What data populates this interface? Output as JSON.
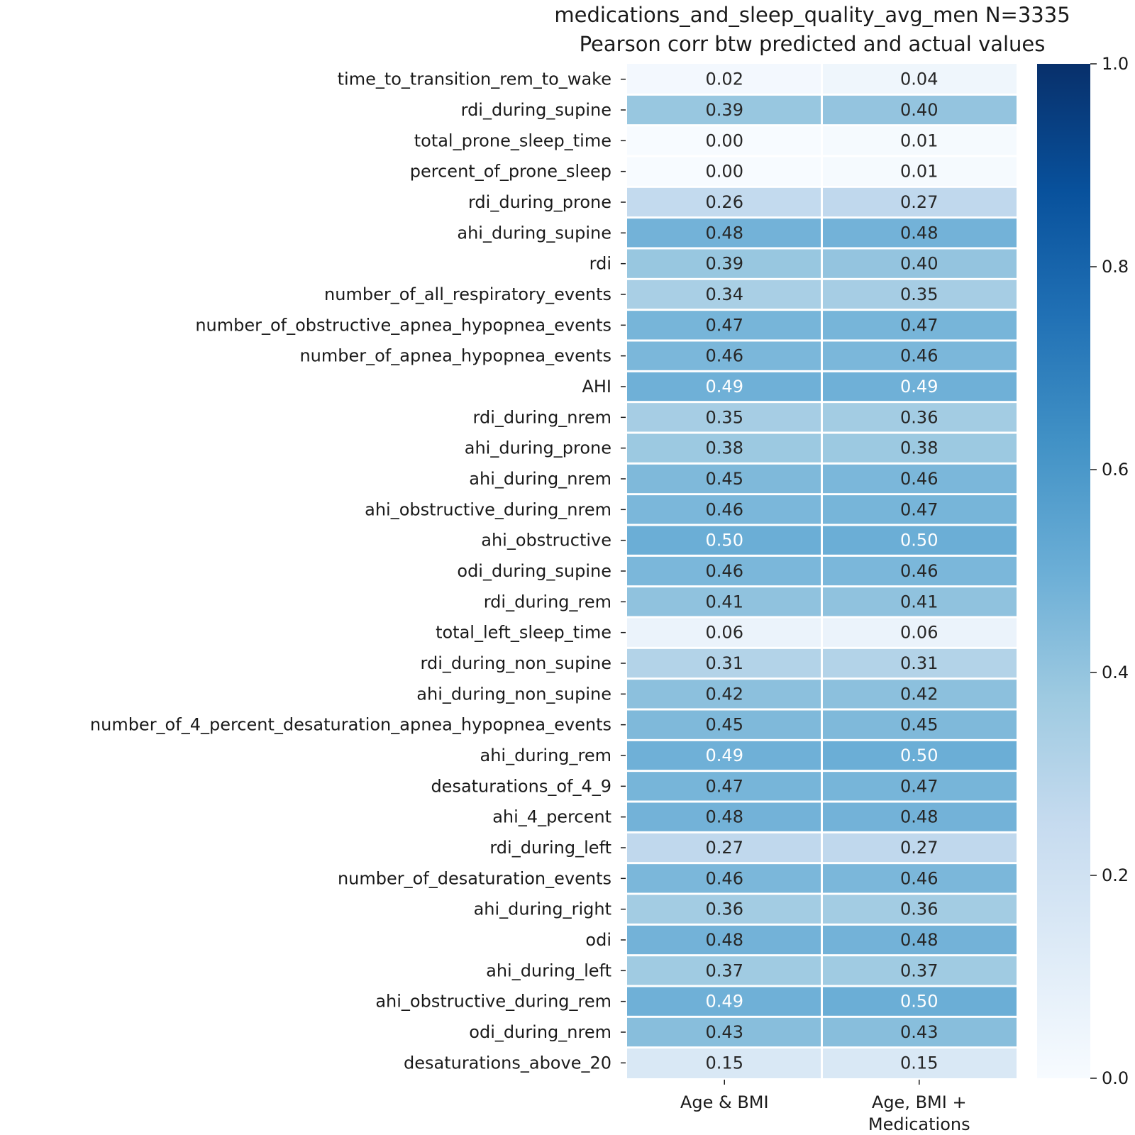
{
  "chart_data": {
    "type": "heatmap",
    "title": "medications_and_sleep_quality_avg_men N=3335",
    "subtitle": "Pearson corr btw predicted and actual values",
    "columns": [
      [
        "Age & BMI"
      ],
      [
        "Age, BMI +",
        "Medications"
      ]
    ],
    "rows": [
      "time_to_transition_rem_to_wake",
      "rdi_during_supine",
      "total_prone_sleep_time",
      "percent_of_prone_sleep",
      "rdi_during_prone",
      "ahi_during_supine",
      "rdi",
      "number_of_all_respiratory_events",
      "number_of_obstructive_apnea_hypopnea_events",
      "number_of_apnea_hypopnea_events",
      "AHI",
      "rdi_during_nrem",
      "ahi_during_prone",
      "ahi_during_nrem",
      "ahi_obstructive_during_nrem",
      "ahi_obstructive",
      "odi_during_supine",
      "rdi_during_rem",
      "total_left_sleep_time",
      "rdi_during_non_supine",
      "ahi_during_non_supine",
      "number_of_4_percent_desaturation_apnea_hypopnea_events",
      "ahi_during_rem",
      "desaturations_of_4_9",
      "ahi_4_percent",
      "rdi_during_left",
      "number_of_desaturation_events",
      "ahi_during_right",
      "odi",
      "ahi_during_left",
      "ahi_obstructive_during_rem",
      "odi_during_nrem",
      "desaturations_above_20"
    ],
    "values": [
      [
        0.02,
        0.04
      ],
      [
        0.39,
        0.4
      ],
      [
        0.0,
        0.01
      ],
      [
        0.0,
        0.01
      ],
      [
        0.26,
        0.27
      ],
      [
        0.48,
        0.48
      ],
      [
        0.39,
        0.4
      ],
      [
        0.34,
        0.35
      ],
      [
        0.47,
        0.47
      ],
      [
        0.46,
        0.46
      ],
      [
        0.49,
        0.49
      ],
      [
        0.35,
        0.36
      ],
      [
        0.38,
        0.38
      ],
      [
        0.45,
        0.46
      ],
      [
        0.46,
        0.47
      ],
      [
        0.5,
        0.5
      ],
      [
        0.46,
        0.46
      ],
      [
        0.41,
        0.41
      ],
      [
        0.06,
        0.06
      ],
      [
        0.31,
        0.31
      ],
      [
        0.42,
        0.42
      ],
      [
        0.45,
        0.45
      ],
      [
        0.49,
        0.5
      ],
      [
        0.47,
        0.47
      ],
      [
        0.48,
        0.48
      ],
      [
        0.27,
        0.27
      ],
      [
        0.46,
        0.46
      ],
      [
        0.36,
        0.36
      ],
      [
        0.48,
        0.48
      ],
      [
        0.37,
        0.37
      ],
      [
        0.49,
        0.5
      ],
      [
        0.43,
        0.43
      ],
      [
        0.15,
        0.15
      ]
    ],
    "value_labels": [
      [
        "0.02",
        "0.04"
      ],
      [
        "0.39",
        "0.40"
      ],
      [
        "0.00",
        "0.01"
      ],
      [
        "0.00",
        "0.01"
      ],
      [
        "0.26",
        "0.27"
      ],
      [
        "0.48",
        "0.48"
      ],
      [
        "0.39",
        "0.40"
      ],
      [
        "0.34",
        "0.35"
      ],
      [
        "0.47",
        "0.47"
      ],
      [
        "0.46",
        "0.46"
      ],
      [
        "0.49",
        "0.49"
      ],
      [
        "0.35",
        "0.36"
      ],
      [
        "0.38",
        "0.38"
      ],
      [
        "0.45",
        "0.46"
      ],
      [
        "0.46",
        "0.47"
      ],
      [
        "0.50",
        "0.50"
      ],
      [
        "0.46",
        "0.46"
      ],
      [
        "0.41",
        "0.41"
      ],
      [
        "0.06",
        "0.06"
      ],
      [
        "0.31",
        "0.31"
      ],
      [
        "0.42",
        "0.42"
      ],
      [
        "0.45",
        "0.45"
      ],
      [
        "0.49",
        "0.50"
      ],
      [
        "0.47",
        "0.47"
      ],
      [
        "0.48",
        "0.48"
      ],
      [
        "0.27",
        "0.27"
      ],
      [
        "0.46",
        "0.46"
      ],
      [
        "0.36",
        "0.36"
      ],
      [
        "0.48",
        "0.48"
      ],
      [
        "0.37",
        "0.37"
      ],
      [
        "0.49",
        "0.50"
      ],
      [
        "0.43",
        "0.43"
      ],
      [
        "0.15",
        "0.15"
      ]
    ],
    "colormap": "Blues",
    "vmin": 0.0,
    "vmax": 1.0,
    "colorbar_ticks": [
      "0.0",
      "0.2",
      "0.4",
      "0.6",
      "0.8",
      "1.0"
    ],
    "colors": {
      "blues_stops": [
        "#f7fbff",
        "#deebf7",
        "#c6dbef",
        "#9ecae1",
        "#6baed6",
        "#4292c6",
        "#2171b5",
        "#08519c",
        "#08306b"
      ],
      "text_dark": "#262626",
      "text_light": "#ffffff"
    }
  }
}
